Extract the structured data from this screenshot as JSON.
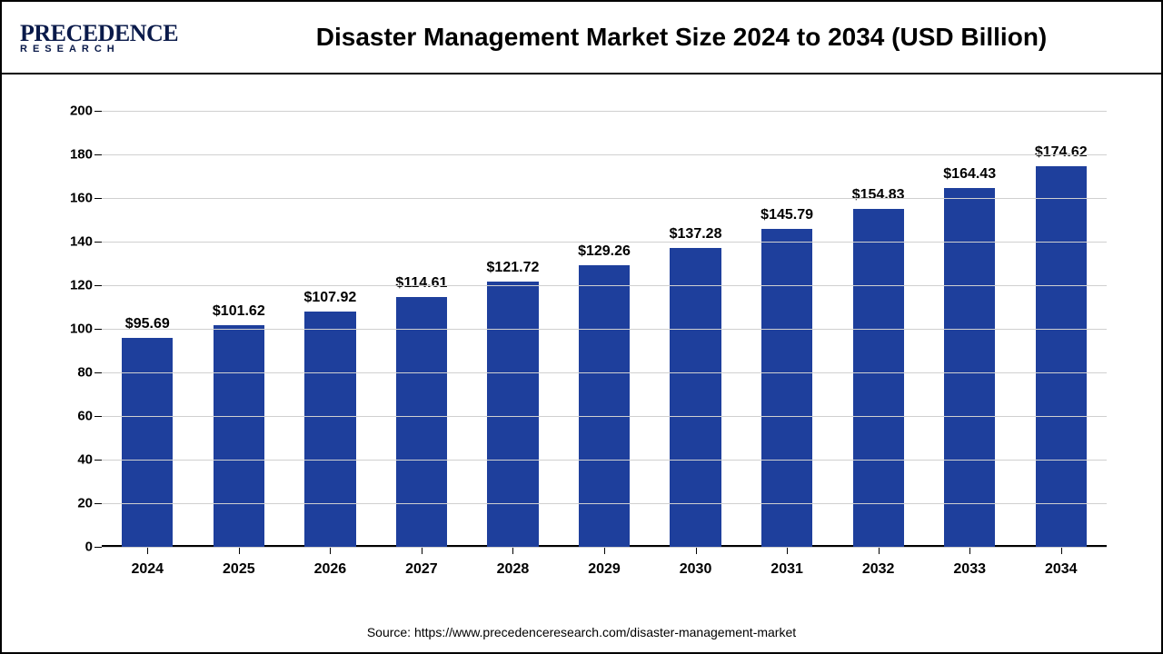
{
  "logo": {
    "brand_main": "PRECEDENCE",
    "brand_sub": "RESEARCH"
  },
  "chart": {
    "type": "bar",
    "title": "Disaster Management Market Size 2024 to 2034 (USD Billion)",
    "categories": [
      "2024",
      "2025",
      "2026",
      "2027",
      "2028",
      "2029",
      "2030",
      "2031",
      "2032",
      "2033",
      "2034"
    ],
    "values": [
      95.69,
      101.62,
      107.92,
      114.61,
      121.72,
      129.26,
      137.28,
      145.79,
      154.83,
      164.43,
      174.62
    ],
    "value_labels": [
      "$95.69",
      "$101.62",
      "$107.92",
      "$114.61",
      "$121.72",
      "$129.26",
      "$137.28",
      "$145.79",
      "$154.83",
      "$164.43",
      "$174.62"
    ],
    "bar_color": "#1e3f9c",
    "ylim": [
      0,
      200
    ],
    "ytick_step": 20,
    "yticks": [
      0,
      20,
      40,
      60,
      80,
      100,
      120,
      140,
      160,
      180,
      200
    ],
    "grid_color": "#d0d0d0",
    "background_color": "#ffffff",
    "axis_color": "#000000",
    "title_fontsize": 28,
    "label_fontsize": 16,
    "bar_width_pct": 56
  },
  "source": "Source: https://www.precedenceresearch.com/disaster-management-market"
}
